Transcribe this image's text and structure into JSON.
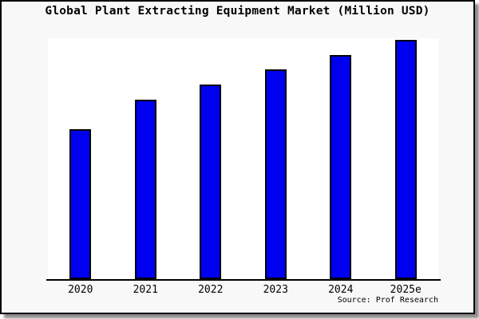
{
  "card": {
    "title": "Global Plant Extracting Equipment Market (Million USD)",
    "source": "Source: Prof Research"
  },
  "colors": {
    "bar_fill": "#0000f0",
    "bar_border": "#000000",
    "card_background": "#f8f8f8",
    "plot_background": "#ffffff",
    "axis": "#000000",
    "title_text": "#000000",
    "shadow_gray": "#8f8f8f"
  },
  "chart_data": {
    "type": "bar",
    "title": "Global Plant Extracting Equipment Market (Million USD)",
    "categories": [
      "2020",
      "2021",
      "2022",
      "2023",
      "2024",
      "2025e"
    ],
    "values": [
      62.7,
      75.0,
      81.4,
      87.8,
      93.6,
      100.0
    ],
    "value_scale": "percent of tallest bar; chart shows no numeric value axis",
    "xlabel": "",
    "ylabel": "",
    "ylim": [
      0,
      100
    ],
    "grid": false,
    "legend": false,
    "bar_color": "#0000f0",
    "source_note": "Source: Prof Research"
  }
}
